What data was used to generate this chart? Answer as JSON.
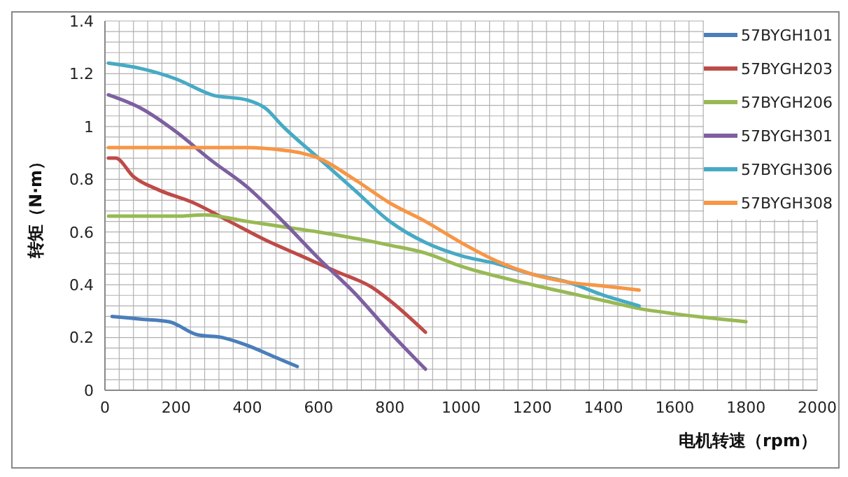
{
  "chart_data": {
    "type": "line",
    "xlabel": "电机转速（rpm）",
    "ylabel": "转矩（N·m）",
    "xlim": [
      0,
      2000
    ],
    "xticks": [
      0,
      200,
      400,
      600,
      800,
      1000,
      1200,
      1400,
      1600,
      1800,
      2000
    ],
    "ylim": [
      0,
      1.4
    ],
    "yticks": [
      0,
      0.2,
      0.4,
      0.6,
      0.8,
      1,
      1.2,
      1.4
    ],
    "grid": true,
    "legend": "top right",
    "marker": "none",
    "line_style": "solid",
    "series": [
      {
        "name": "57BYGH101",
        "color": "#4a7ebb",
        "x": [
          20,
          100,
          180,
          260,
          330,
          400,
          470,
          540
        ],
        "values": [
          0.28,
          0.27,
          0.26,
          0.21,
          0.2,
          0.17,
          0.13,
          0.09
        ]
      },
      {
        "name": "57BYGH203",
        "color": "#be4b48",
        "x": [
          10,
          30,
          80,
          150,
          250,
          350,
          450,
          550,
          650,
          750,
          800,
          900
        ],
        "values": [
          0.88,
          0.88,
          0.81,
          0.76,
          0.71,
          0.64,
          0.57,
          0.51,
          0.45,
          0.39,
          0.34,
          0.22
        ]
      },
      {
        "name": "57BYGH206",
        "color": "#98b954",
        "x": [
          10,
          200,
          280,
          400,
          500,
          600,
          800,
          900,
          1000,
          1200,
          1400,
          1500,
          1600,
          1800
        ],
        "values": [
          0.66,
          0.66,
          0.665,
          0.64,
          0.62,
          0.6,
          0.55,
          0.52,
          0.47,
          0.4,
          0.34,
          0.31,
          0.29,
          0.26
        ]
      },
      {
        "name": "57BYGH301",
        "color": "#7d60a0",
        "x": [
          10,
          100,
          200,
          300,
          400,
          500,
          600,
          700,
          800,
          900
        ],
        "values": [
          1.12,
          1.07,
          0.98,
          0.87,
          0.77,
          0.64,
          0.5,
          0.37,
          0.22,
          0.08
        ]
      },
      {
        "name": "57BYGH306",
        "color": "#46aac5",
        "x": [
          10,
          100,
          200,
          300,
          400,
          450,
          500,
          600,
          700,
          800,
          900,
          1000,
          1100,
          1200,
          1300,
          1400,
          1500
        ],
        "values": [
          1.24,
          1.22,
          1.18,
          1.12,
          1.1,
          1.07,
          1.0,
          0.88,
          0.76,
          0.64,
          0.56,
          0.51,
          0.48,
          0.44,
          0.41,
          0.36,
          0.32
        ]
      },
      {
        "name": "57BYGH308",
        "color": "#f79646",
        "x": [
          10,
          200,
          400,
          500,
          550,
          600,
          700,
          800,
          900,
          1000,
          1100,
          1200,
          1300,
          1400,
          1500
        ],
        "values": [
          0.92,
          0.92,
          0.92,
          0.91,
          0.9,
          0.88,
          0.8,
          0.71,
          0.64,
          0.56,
          0.49,
          0.44,
          0.41,
          0.395,
          0.38
        ]
      }
    ]
  }
}
